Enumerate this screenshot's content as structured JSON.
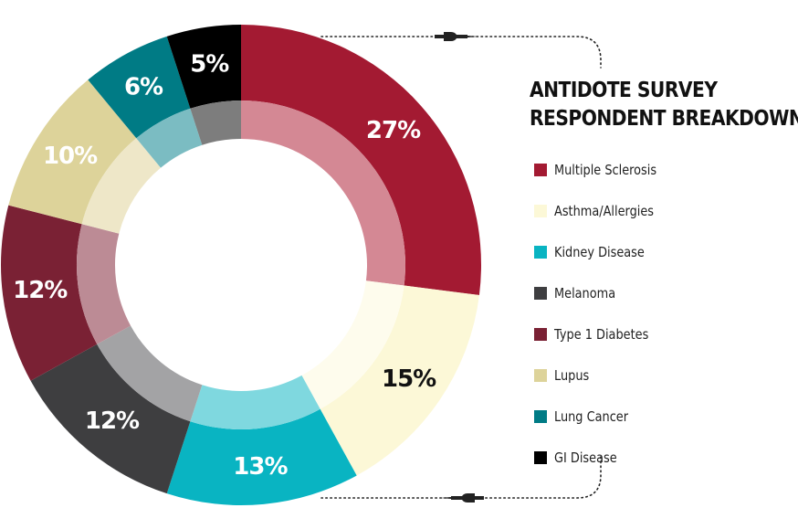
{
  "chart_data": {
    "type": "pie",
    "title_lines": [
      "ANTIDOTE SURVEY",
      "RESPONDENT BREAKDOWN"
    ],
    "categories": [
      "Multiple Sclerosis",
      "Asthma/Allergies",
      "Kidney Disease",
      "Melanoma",
      "Type 1 Diabetes",
      "Lupus",
      "Lung Cancer",
      "GI Disease"
    ],
    "values": [
      27,
      15,
      13,
      12,
      12,
      10,
      6,
      5
    ],
    "labels": [
      "27%",
      "15%",
      "13%",
      "12%",
      "12%",
      "10%",
      "6%",
      "5%"
    ],
    "colors": [
      "#a31a32",
      "#fcf8d7",
      "#09b4c2",
      "#3e3e40",
      "#7a2134",
      "#ddd39a",
      "#007b85",
      "#000000"
    ],
    "inner_colors": [
      "#d48894",
      "#fefced",
      "#7fd8df",
      "#a3a3a5",
      "#bc8b95",
      "#eee7c8",
      "#7bbcc2",
      "#7d7d7d"
    ],
    "label_colors": [
      "#ffffff",
      "#111111",
      "#ffffff",
      "#ffffff",
      "#ffffff",
      "#ffffff",
      "#ffffff",
      "#ffffff"
    ],
    "legend_position": "right",
    "style": "donut"
  },
  "decorations": {
    "connector": "dotted-line",
    "dart_icon": "dart-icon"
  }
}
